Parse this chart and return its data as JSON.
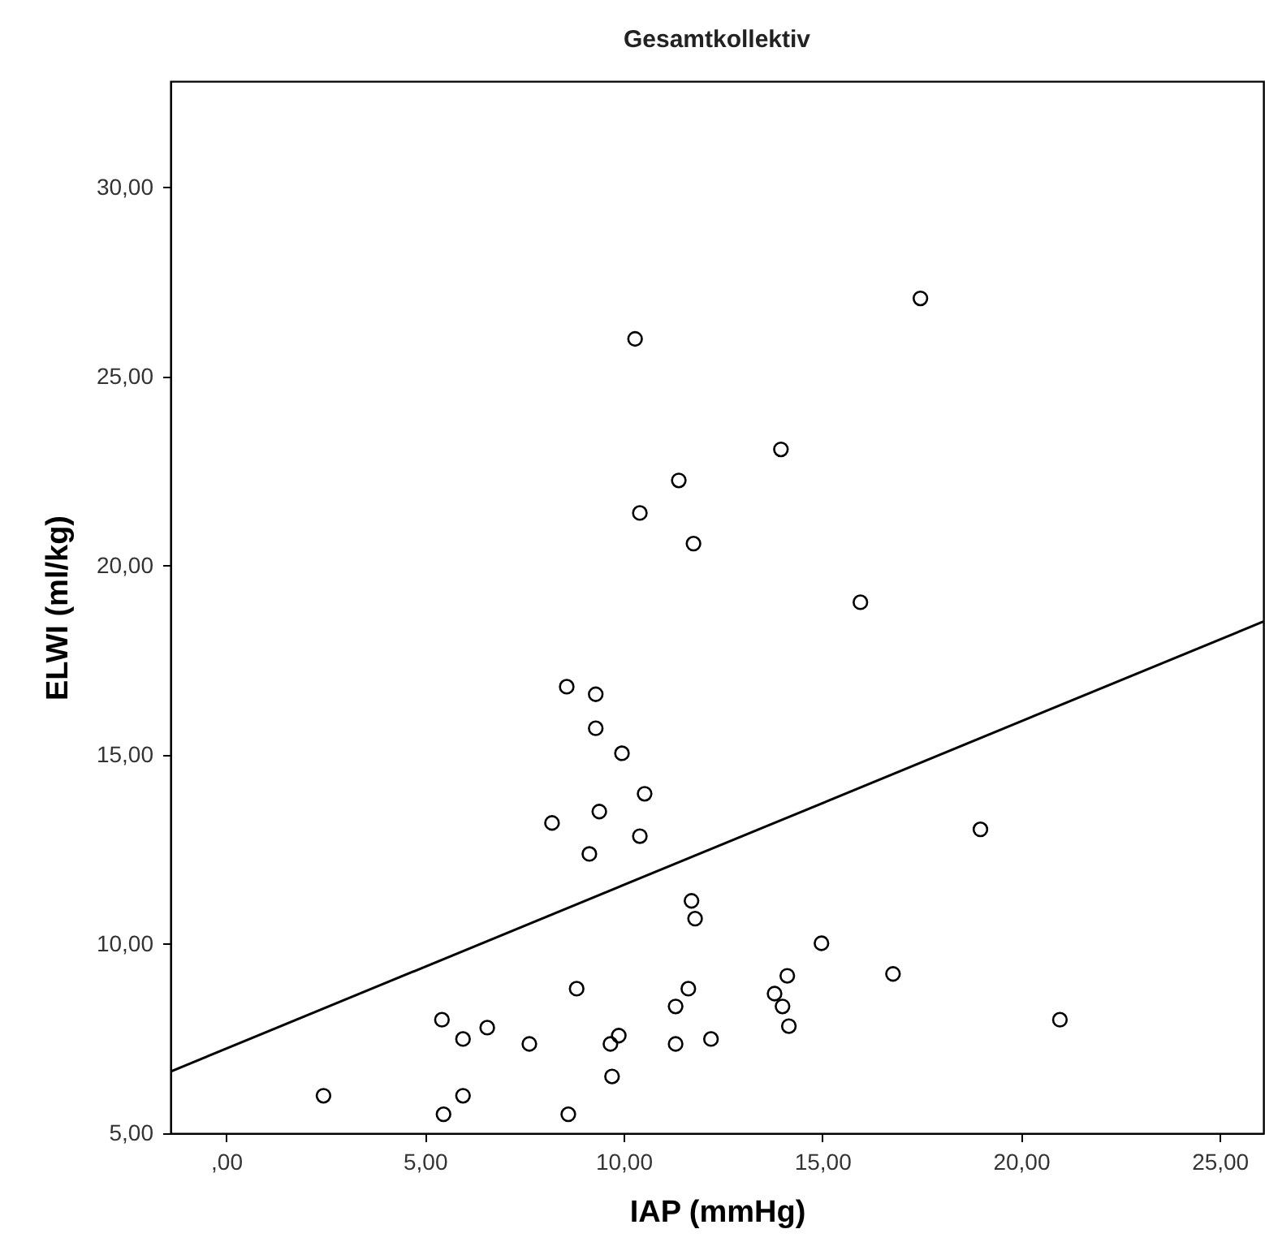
{
  "chart_data": {
    "type": "scatter",
    "title": "Gesamtkollektiv",
    "xlabel": "IAP (mmHg)",
    "ylabel": "ELWI (ml/kg)",
    "xlim": [
      -1.4,
      26.1
    ],
    "ylim": [
      5,
      32.8
    ],
    "xticks": [
      {
        "value": 0,
        "label": ",00"
      },
      {
        "value": 5,
        "label": "5,00"
      },
      {
        "value": 10,
        "label": "10,00"
      },
      {
        "value": 15,
        "label": "15,00"
      },
      {
        "value": 20,
        "label": "20,00"
      },
      {
        "value": 25,
        "label": "25,00"
      }
    ],
    "yticks": [
      {
        "value": 5,
        "label": "5,00"
      },
      {
        "value": 10,
        "label": "10,00"
      },
      {
        "value": 15,
        "label": "15,00"
      },
      {
        "value": 20,
        "label": "20,00"
      },
      {
        "value": 25,
        "label": "25,00"
      },
      {
        "value": 30,
        "label": "30,00"
      }
    ],
    "grid": false,
    "series": [
      {
        "marker": "circle",
        "color": "#000000",
        "x": [
          2.45,
          5.43,
          5.47,
          5.96,
          5.96,
          6.57,
          7.63,
          8.2,
          8.57,
          8.61,
          8.82,
          9.14,
          9.3,
          9.3,
          9.39,
          9.67,
          9.71,
          9.88,
          9.96,
          10.29,
          10.41,
          10.41,
          10.53,
          11.31,
          11.31,
          11.39,
          11.63,
          11.71,
          11.76,
          11.8,
          12.2,
          13.8,
          13.96,
          14.0,
          14.12,
          14.16,
          14.98,
          15.96,
          16.78,
          17.47,
          18.98,
          20.98
        ],
        "values": [
          5.99,
          8.0,
          5.5,
          7.49,
          5.99,
          7.79,
          7.36,
          13.2,
          16.8,
          5.5,
          8.82,
          12.38,
          16.6,
          15.7,
          13.5,
          7.36,
          6.5,
          7.58,
          15.04,
          25.99,
          12.85,
          21.39,
          13.97,
          8.35,
          7.36,
          22.25,
          8.82,
          11.14,
          20.58,
          10.67,
          7.49,
          8.69,
          23.07,
          8.35,
          9.16,
          7.83,
          10.02,
          19.03,
          9.21,
          27.06,
          13.03,
          8.0
        ]
      },
      {
        "type": "line",
        "marker": "none",
        "color": "#000000",
        "x": [
          -1.4,
          26.1
        ],
        "values": [
          6.63,
          18.52
        ]
      }
    ]
  }
}
